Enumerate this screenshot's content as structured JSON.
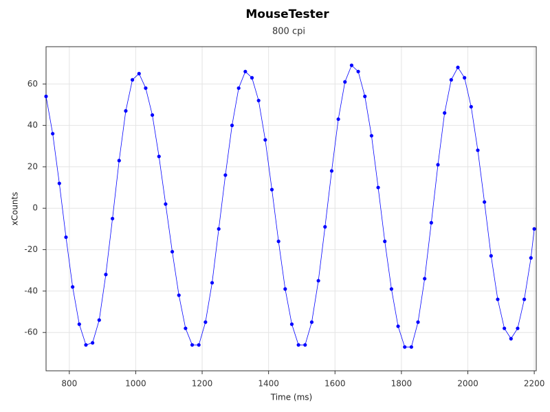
{
  "chart_data": {
    "type": "line",
    "title": "MouseTester",
    "subtitle": "800 cpi",
    "x_label": "Time (ms)",
    "y_label": "xCounts",
    "color": "#0000ff",
    "markers": true,
    "grid": true,
    "x": [
      730,
      750,
      770,
      790,
      810,
      830,
      850,
      870,
      890,
      910,
      930,
      950,
      970,
      990,
      1010,
      1030,
      1050,
      1070,
      1090,
      1110,
      1130,
      1150,
      1170,
      1190,
      1210,
      1230,
      1250,
      1270,
      1290,
      1310,
      1330,
      1350,
      1370,
      1390,
      1410,
      1430,
      1450,
      1470,
      1490,
      1510,
      1530,
      1550,
      1570,
      1590,
      1610,
      1630,
      1650,
      1670,
      1690,
      1710,
      1730,
      1750,
      1770,
      1790,
      1810,
      1830,
      1850,
      1870,
      1890,
      1910,
      1930,
      1950,
      1970,
      1990,
      2010,
      2030,
      2050,
      2070,
      2090,
      2110,
      2130,
      2150,
      2170,
      2190,
      2200
    ],
    "values": [
      54,
      36,
      12,
      -14,
      -38,
      -56,
      -66,
      -65,
      -54,
      -32,
      -5,
      23,
      47,
      62,
      65,
      58,
      45,
      25,
      2,
      -21,
      -42,
      -58,
      -66,
      -66,
      -55,
      -36,
      -10,
      16,
      40,
      58,
      66,
      63,
      52,
      33,
      9,
      -16,
      -39,
      -56,
      -66,
      -66,
      -55,
      -35,
      -9,
      18,
      43,
      61,
      69,
      66,
      54,
      35,
      10,
      -16,
      -39,
      -57,
      -67,
      -67,
      -55,
      -34,
      -7,
      21,
      46,
      62,
      68,
      63,
      49,
      28,
      3,
      -23,
      -44,
      -58,
      -63,
      -58,
      -44,
      -24,
      -10
    ],
    "xlim": [
      730,
      2206
    ],
    "ylim": [
      -78.5,
      78
    ],
    "xticks": [
      800,
      1000,
      1200,
      1400,
      1600,
      1800,
      2000,
      2200
    ],
    "yticks": [
      -60,
      -40,
      -20,
      0,
      20,
      40,
      60
    ]
  }
}
